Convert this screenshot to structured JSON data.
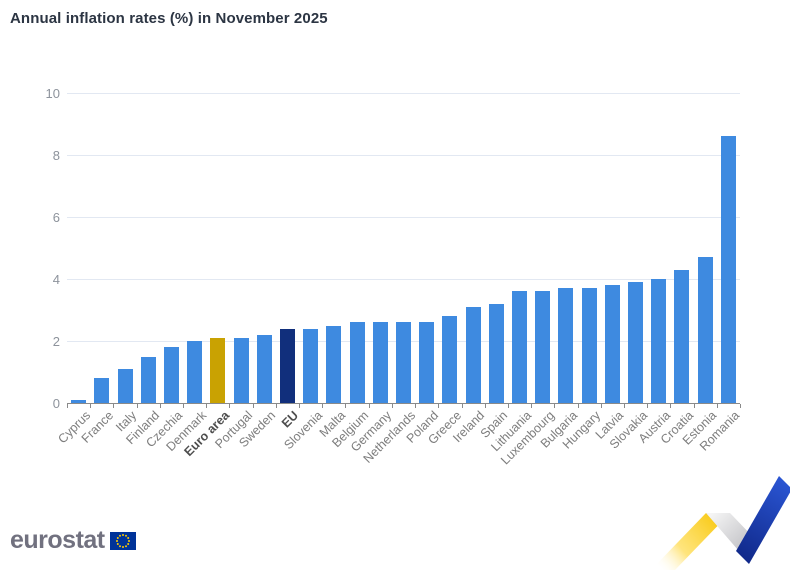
{
  "chart_data": {
    "type": "bar",
    "title": "Annual inflation rates (%) in November 2025",
    "categories": [
      "Cyprus",
      "France",
      "Italy",
      "Finland",
      "Czechia",
      "Denmark",
      "Euro area",
      "Portugal",
      "Sweden",
      "EU",
      "Slovenia",
      "Malta",
      "Belgium",
      "Germany",
      "Netherlands",
      "Poland",
      "Greece",
      "Ireland",
      "Spain",
      "Lithuania",
      "Luxembourg",
      "Bulgaria",
      "Hungary",
      "Latvia",
      "Slovakia",
      "Austria",
      "Croatia",
      "Estonia",
      "Romania"
    ],
    "values": [
      0.1,
      0.8,
      1.1,
      1.5,
      1.8,
      2.0,
      2.1,
      2.1,
      2.2,
      2.4,
      2.4,
      2.5,
      2.6,
      2.6,
      2.6,
      2.6,
      2.8,
      3.1,
      3.2,
      3.6,
      3.6,
      3.7,
      3.7,
      3.8,
      3.9,
      4.0,
      4.3,
      4.7,
      8.6
    ],
    "bold_categories": [
      "Euro area",
      "EU"
    ],
    "colors": {
      "default": "#3e8ae0",
      "Euro area": "#c9a202",
      "EU": "#112f7c"
    },
    "xlabel": "",
    "ylabel": "",
    "ylim": [
      0,
      10
    ],
    "yticks": [
      0,
      2,
      4,
      6,
      8,
      10
    ],
    "grid": true,
    "legend": false
  },
  "footer": {
    "logo_text": "eurostat"
  }
}
